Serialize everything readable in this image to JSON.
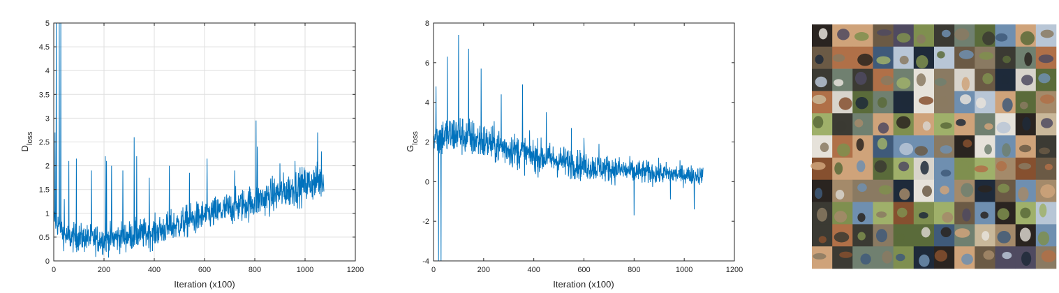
{
  "chart_data": [
    {
      "type": "line",
      "xlabel": "Iteration (x100)",
      "ylabel_main": "D",
      "ylabel_sub": "loss",
      "xlim": [
        0,
        1200
      ],
      "ylim": [
        0,
        5
      ],
      "xticks": [
        "0",
        "200",
        "400",
        "600",
        "800",
        "1000",
        "1200"
      ],
      "yticks": [
        "0",
        "0.5",
        "1",
        "1.5",
        "2",
        "2.5",
        "3",
        "3.5",
        "4",
        "4.5",
        "5"
      ],
      "grid": true,
      "line_color": "#0072BD",
      "x_end": 1075,
      "trend": [
        [
          0,
          0.9
        ],
        [
          50,
          0.5
        ],
        [
          200,
          0.45
        ],
        [
          400,
          0.6
        ],
        [
          600,
          0.95
        ],
        [
          800,
          1.25
        ],
        [
          1000,
          1.6
        ],
        [
          1075,
          1.7
        ]
      ],
      "spikes": [
        [
          5,
          2.7
        ],
        [
          10,
          5.0
        ],
        [
          22,
          5.0
        ],
        [
          28,
          5.0
        ],
        [
          42,
          1.3
        ],
        [
          60,
          2.1
        ],
        [
          90,
          2.15
        ],
        [
          150,
          1.9
        ],
        [
          205,
          2.2
        ],
        [
          210,
          2.1
        ],
        [
          230,
          2.0
        ],
        [
          275,
          1.9
        ],
        [
          320,
          2.6
        ],
        [
          330,
          2.2
        ],
        [
          380,
          1.75
        ],
        [
          460,
          2.0
        ],
        [
          540,
          1.85
        ],
        [
          610,
          2.15
        ],
        [
          720,
          1.9
        ],
        [
          805,
          2.95
        ],
        [
          810,
          2.4
        ],
        [
          900,
          2.05
        ],
        [
          960,
          2.1
        ],
        [
          1050,
          2.7
        ],
        [
          1065,
          2.3
        ]
      ]
    },
    {
      "type": "line",
      "xlabel": "Iteration (x100)",
      "ylabel_main": "G",
      "ylabel_sub": "loss",
      "xlim": [
        0,
        1200
      ],
      "ylim": [
        -4,
        8
      ],
      "xticks": [
        "0",
        "200",
        "400",
        "600",
        "800",
        "1000",
        "1200"
      ],
      "yticks": [
        "-4",
        "-2",
        "0",
        "2",
        "4",
        "6",
        "8"
      ],
      "grid": false,
      "line_color": "#0072BD",
      "x_end": 1075,
      "trend": [
        [
          0,
          2.2
        ],
        [
          100,
          2.4
        ],
        [
          200,
          2.0
        ],
        [
          400,
          1.3
        ],
        [
          600,
          0.8
        ],
        [
          800,
          0.5
        ],
        [
          1000,
          0.35
        ],
        [
          1075,
          0.3
        ]
      ],
      "spikes": [
        [
          10,
          4.8
        ],
        [
          20,
          -4.0
        ],
        [
          30,
          -4.0
        ],
        [
          55,
          6.3
        ],
        [
          100,
          7.4
        ],
        [
          140,
          6.7
        ],
        [
          190,
          5.7
        ],
        [
          270,
          4.4
        ],
        [
          355,
          4.9
        ],
        [
          450,
          3.5
        ],
        [
          550,
          2.7
        ],
        [
          600,
          2.2
        ],
        [
          660,
          1.9
        ],
        [
          800,
          -1.7
        ],
        [
          945,
          -0.9
        ],
        [
          1040,
          -1.4
        ]
      ]
    }
  ],
  "image_grid": {
    "rows": 11,
    "cols": 12,
    "palette": [
      "#3b3a33",
      "#6b5a45",
      "#8a7a62",
      "#a48a6a",
      "#c9b89a",
      "#5a6b3a",
      "#7f8f4f",
      "#9fb06a",
      "#3f5a7a",
      "#6f8fb0",
      "#b8c6d6",
      "#d8d4cc",
      "#2a2420",
      "#86502f",
      "#b07048",
      "#cfa37a",
      "#e6e2da",
      "#4f4a60",
      "#708070",
      "#1e2a3a"
    ]
  }
}
